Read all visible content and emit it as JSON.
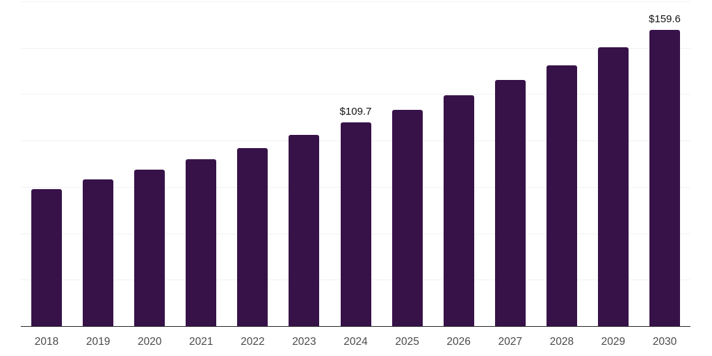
{
  "chart_data": {
    "type": "bar",
    "title": "",
    "xlabel": "",
    "ylabel": "",
    "categories": [
      "2018",
      "2019",
      "2020",
      "2021",
      "2022",
      "2023",
      "2024",
      "2025",
      "2026",
      "2027",
      "2028",
      "2029",
      "2030"
    ],
    "values": [
      74.0,
      79.2,
      84.5,
      90.0,
      96.0,
      102.9,
      109.7,
      116.7,
      124.5,
      132.8,
      140.7,
      150.3,
      159.6
    ],
    "data_labels": [
      "",
      "",
      "",
      "",
      "",
      "",
      "$109.7",
      "",
      "",
      "",
      "",
      "",
      "$159.6"
    ],
    "ylim": [
      0,
      175
    ],
    "gridline_step": 25,
    "grid": "on",
    "legend": "none",
    "y_axis_tick_labels_visible": false
  },
  "colors": {
    "bar": "#371249",
    "gridline": "#f1f1f4",
    "axis_line": "#262626",
    "tick_label": "#4a4a4a",
    "data_label": "#141414",
    "background": "#ffffff"
  }
}
